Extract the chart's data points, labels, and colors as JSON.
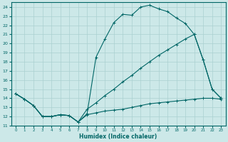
{
  "xlabel": "Humidex (Indice chaleur)",
  "bg_color": "#cce8e8",
  "line_color": "#006666",
  "grid_color": "#aad0d0",
  "xlim": [
    -0.5,
    23.5
  ],
  "ylim": [
    11,
    24.5
  ],
  "xticks": [
    0,
    1,
    2,
    3,
    4,
    5,
    6,
    7,
    8,
    9,
    10,
    11,
    12,
    13,
    14,
    15,
    16,
    17,
    18,
    19,
    20,
    21,
    22,
    23
  ],
  "yticks": [
    11,
    12,
    13,
    14,
    15,
    16,
    17,
    18,
    19,
    20,
    21,
    22,
    23,
    24
  ],
  "line1_x": [
    0,
    1,
    2,
    3,
    4,
    5,
    6,
    7,
    8,
    9,
    10,
    11,
    12,
    13,
    14,
    15,
    16,
    17,
    18,
    19,
    20,
    21,
    22,
    23
  ],
  "line1_y": [
    14.5,
    13.9,
    13.2,
    12.0,
    12.0,
    12.2,
    12.1,
    11.4,
    12.3,
    18.5,
    20.5,
    22.3,
    23.2,
    23.1,
    24.0,
    24.2,
    23.8,
    23.5,
    22.8,
    22.2,
    21.0,
    18.2,
    15.0,
    14.0
  ],
  "line2_x": [
    0,
    1,
    2,
    3,
    4,
    5,
    6,
    7,
    8,
    9,
    10,
    11,
    12,
    13,
    14,
    15,
    16,
    17,
    18,
    19,
    20,
    21,
    22,
    23
  ],
  "line2_y": [
    14.5,
    13.9,
    13.2,
    12.0,
    12.0,
    12.2,
    12.1,
    11.4,
    12.2,
    12.4,
    12.6,
    12.7,
    12.8,
    13.0,
    13.2,
    13.4,
    13.5,
    13.6,
    13.7,
    13.8,
    13.9,
    14.0,
    14.0,
    13.9
  ],
  "line3_x": [
    0,
    1,
    2,
    3,
    4,
    5,
    6,
    7,
    8,
    9,
    10,
    11,
    12,
    13,
    14,
    15,
    16,
    17,
    18,
    19,
    20,
    21,
    22,
    23
  ],
  "line3_y": [
    14.5,
    13.9,
    13.2,
    12.0,
    12.0,
    12.2,
    12.1,
    11.4,
    12.8,
    13.5,
    14.3,
    15.0,
    15.8,
    16.5,
    17.3,
    18.0,
    18.7,
    19.3,
    19.9,
    20.5,
    21.0,
    18.2,
    15.0,
    14.0
  ]
}
